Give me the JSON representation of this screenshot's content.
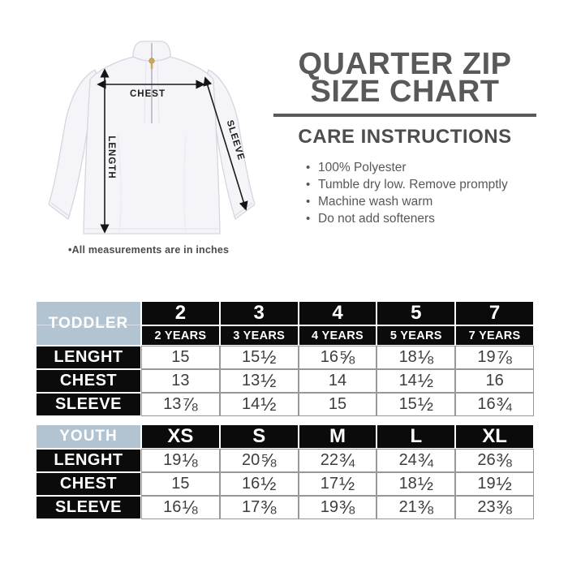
{
  "header": {
    "title_line1": "QUARTER ZIP",
    "title_line2": "SIZE CHART",
    "care_title": "CARE INSTRUCTIONS"
  },
  "care": {
    "items": [
      "100% Polyester",
      "Tumble dry low. Remove promptly",
      "Machine wash warm",
      "Do not add softeners"
    ]
  },
  "diagram": {
    "chest_label": "CHEST",
    "length_label": "LENGTH",
    "sleeve_label": "SLEEVE",
    "note": "•All measurements are in inches"
  },
  "colors": {
    "title_gray": "#58595b",
    "header_blue": "#b2c3d1",
    "cell_black": "#0b0b0b",
    "value_gray": "#3d3d3d",
    "garment_fill": "#f5f4f8",
    "zipper_pull_gold": "#cfa85c"
  },
  "tables": [
    {
      "group_label": "TODDLER",
      "columns": [
        "2",
        "3",
        "4",
        "5",
        "7"
      ],
      "sub_columns": [
        "2 YEARS",
        "3 YEARS",
        "4 YEARS",
        "5 YEARS",
        "7 YEARS"
      ],
      "rows": [
        {
          "label": "LENGHT",
          "values": [
            "15",
            "15½",
            "16⅝",
            "18⅛",
            "19⅞"
          ]
        },
        {
          "label": "CHEST",
          "values": [
            "13",
            "13½",
            "14",
            "14½",
            "16"
          ]
        },
        {
          "label": "SLEEVE",
          "values": [
            "13⅞",
            "14½",
            "15",
            "15½",
            "16¾"
          ]
        }
      ]
    },
    {
      "group_label": "YOUTH",
      "columns": [
        "XS",
        "S",
        "M",
        "L",
        "XL"
      ],
      "sub_columns": null,
      "rows": [
        {
          "label": "LENGHT",
          "values": [
            "19⅛",
            "20⅝",
            "22¾",
            "24¾",
            "26⅜"
          ]
        },
        {
          "label": "CHEST",
          "values": [
            "15",
            "16½",
            "17½",
            "18½",
            "19½"
          ]
        },
        {
          "label": "SLEEVE",
          "values": [
            "16⅛",
            "17⅜",
            "19⅜",
            "21⅜",
            "23⅜"
          ]
        }
      ]
    }
  ]
}
